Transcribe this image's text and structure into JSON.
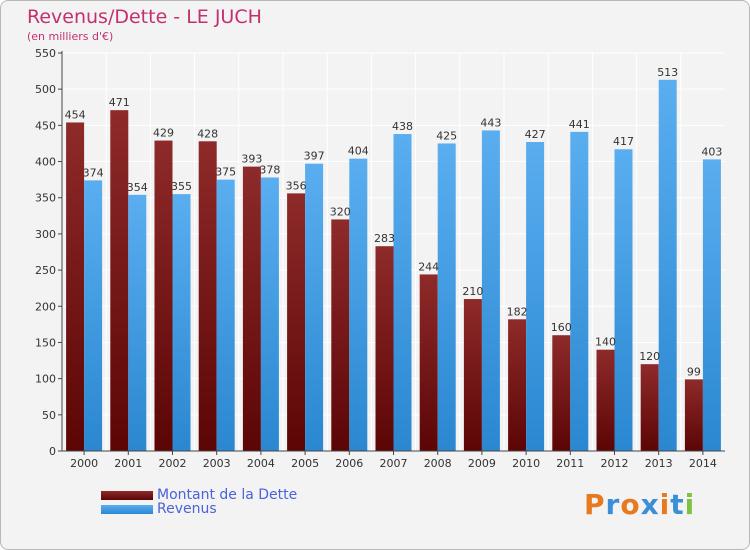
{
  "title": "Revenus/Dette - LE JUCH",
  "subtitle": "(en milliers d'€)",
  "brand": "Proxiti",
  "colors": {
    "dette": "#7a1414",
    "revenus": "#3d9be0",
    "title": "#c4306f",
    "grid": "#ffffff",
    "background": "#f3f3f3"
  },
  "legend": [
    {
      "label": "Montant de la Dette",
      "color": "#7a1414"
    },
    {
      "label": "Revenus",
      "color": "#3d9be0"
    }
  ],
  "chart_data": {
    "type": "bar",
    "title": "Revenus/Dette - LE JUCH",
    "subtitle": "(en milliers d'€)",
    "categories": [
      "2000",
      "2001",
      "2002",
      "2003",
      "2004",
      "2005",
      "2006",
      "2007",
      "2008",
      "2009",
      "2010",
      "2011",
      "2012",
      "2013",
      "2014"
    ],
    "series": [
      {
        "name": "Montant de la Dette",
        "values": [
          454,
          471,
          429,
          428,
          393,
          356,
          320,
          283,
          244,
          210,
          182,
          160,
          140,
          120,
          99
        ]
      },
      {
        "name": "Revenus",
        "values": [
          374,
          354,
          355,
          375,
          378,
          397,
          404,
          438,
          425,
          443,
          427,
          441,
          417,
          513,
          403
        ]
      }
    ],
    "ylim": [
      0,
      550
    ],
    "yticks": [
      0,
      50,
      100,
      150,
      200,
      250,
      300,
      350,
      400,
      450,
      500,
      550
    ],
    "grid": true,
    "legend_position": "bottom-left"
  }
}
